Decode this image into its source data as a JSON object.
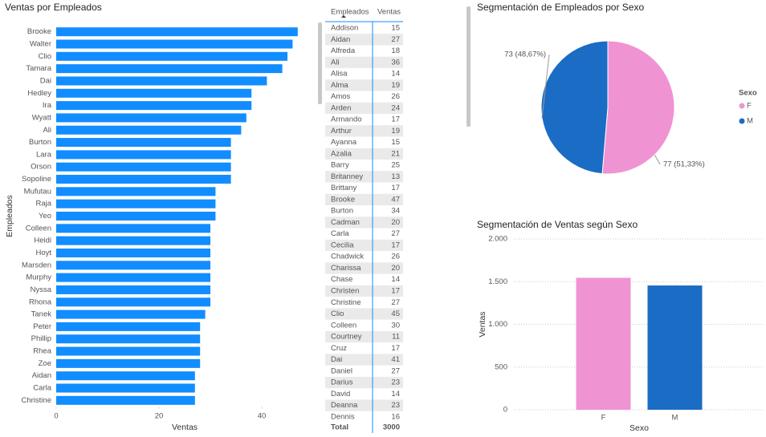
{
  "chart_data": [
    {
      "type": "bar",
      "orientation": "horizontal",
      "title": "Ventas por Empleados",
      "x_label": "Ventas",
      "y_label": "Empleados",
      "color": "#118dff",
      "categories": [
        "Brooke",
        "Walter",
        "Clio",
        "Tamara",
        "Dai",
        "Hedley",
        "Ira",
        "Wyatt",
        "Ali",
        "Burton",
        "Lara",
        "Orson",
        "Sopoline",
        "Mufutau",
        "Raja",
        "Yeo",
        "Colleen",
        "Heidi",
        "Hoyt",
        "Marsden",
        "Murphy",
        "Nyssa",
        "Rhona",
        "Tanek",
        "Peter",
        "Phillip",
        "Rhea",
        "Zoe",
        "Aidan",
        "Carla",
        "Christine"
      ],
      "values": [
        47,
        46,
        45,
        44,
        41,
        38,
        38,
        37,
        36,
        34,
        34,
        34,
        34,
        31,
        31,
        31,
        30,
        30,
        30,
        30,
        30,
        30,
        30,
        29,
        28,
        28,
        28,
        28,
        27,
        27,
        27
      ],
      "xlim": [
        0,
        50
      ],
      "xticks": [
        0,
        20,
        40
      ]
    },
    {
      "type": "pie",
      "title": "Segmentación de Empleados por Sexo",
      "legend_title": "Sexo",
      "legend": "right",
      "categories": [
        "F",
        "M"
      ],
      "values": [
        77,
        73
      ],
      "value_labels": [
        "77 (51,33%)",
        "73 (48,67%)"
      ],
      "colors": [
        "#f093d2",
        "#1a6cc4"
      ]
    },
    {
      "type": "bar",
      "orientation": "vertical",
      "title": "Segmentación de Ventas según Sexo",
      "x_label": "Sexo",
      "y_label": "Ventas",
      "grid": true,
      "categories": [
        "F",
        "M"
      ],
      "values": [
        1545,
        1455
      ],
      "colors": [
        "#f093d2",
        "#1a6cc4"
      ],
      "ylim": [
        0,
        2000
      ],
      "yticks": [
        0,
        500,
        {
          "value": 1000,
          "label": "1.000"
        },
        {
          "value": 1500,
          "label": "1.500"
        },
        {
          "value": 2000,
          "label": "2.000"
        }
      ]
    }
  ],
  "table": {
    "columns": [
      "Empleados",
      "Ventas"
    ],
    "rows": [
      [
        "Addison",
        15
      ],
      [
        "Aidan",
        27
      ],
      [
        "Alfreda",
        18
      ],
      [
        "Ali",
        36
      ],
      [
        "Alisa",
        14
      ],
      [
        "Alma",
        19
      ],
      [
        "Amos",
        26
      ],
      [
        "Arden",
        24
      ],
      [
        "Armando",
        17
      ],
      [
        "Arthur",
        19
      ],
      [
        "Ayanna",
        15
      ],
      [
        "Azalia",
        21
      ],
      [
        "Barry",
        25
      ],
      [
        "Britanney",
        13
      ],
      [
        "Brittany",
        17
      ],
      [
        "Brooke",
        47
      ],
      [
        "Burton",
        34
      ],
      [
        "Cadman",
        20
      ],
      [
        "Carla",
        27
      ],
      [
        "Cecilia",
        17
      ],
      [
        "Chadwick",
        26
      ],
      [
        "Charissa",
        20
      ],
      [
        "Chase",
        14
      ],
      [
        "Christen",
        17
      ],
      [
        "Christine",
        27
      ],
      [
        "Clio",
        45
      ],
      [
        "Colleen",
        30
      ],
      [
        "Courtney",
        11
      ],
      [
        "Cruz",
        17
      ],
      [
        "Dai",
        41
      ],
      [
        "Daniel",
        27
      ],
      [
        "Darius",
        23
      ],
      [
        "David",
        14
      ],
      [
        "Deanna",
        23
      ],
      [
        "Dennis",
        16
      ]
    ],
    "total": [
      "Total",
      3000
    ]
  }
}
